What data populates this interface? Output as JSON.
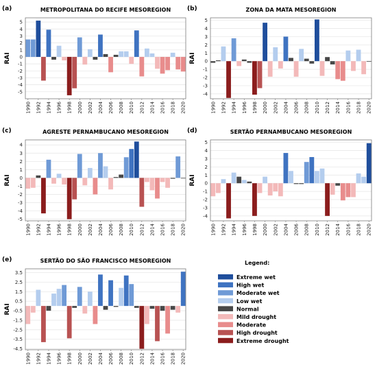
{
  "figure": {
    "legend_title": "Legend:"
  },
  "colors": {
    "Extreme wet": "#1f4e9c",
    "High wet": "#3f73c1",
    "Moderate wet": "#6f9ad6",
    "Low wet": "#b4cdee",
    "Normal": "#474747",
    "Mild drought": "#f3b9b9",
    "Moderate": "#e88c8c",
    "High drought": "#b85252",
    "Extreme drought": "#8b1d1d"
  },
  "legend": {
    "title": "Legend:",
    "items": [
      "Extreme wet",
      "High wet",
      "Moderate wet",
      "Low wet",
      "Normal",
      "Mild drought",
      "Moderate",
      "High drought",
      "Extreme drought"
    ]
  },
  "chart_data": [
    {
      "type": "bar",
      "panel": "(a)",
      "title": "METROPOLITANA DO RECIFE MESOREGION",
      "ylabel": "RAI",
      "ylim": [
        -6,
        5.6
      ],
      "yticks": [
        5,
        4,
        3,
        2,
        1,
        0,
        -1,
        -2,
        -3,
        -4,
        -5
      ],
      "xticks": [
        "1990",
        "1992",
        "1994",
        "1996",
        "1998",
        "2000",
        "2002",
        "2004",
        "2006",
        "2008",
        "2010",
        "2012",
        "2014",
        "2016",
        "2018",
        "2020"
      ],
      "years": [
        1990,
        1991,
        1992,
        1993,
        1994,
        1995,
        1996,
        1997,
        1998,
        1999,
        2000,
        2001,
        2002,
        2003,
        2004,
        2005,
        2006,
        2007,
        2008,
        2009,
        2010,
        2011,
        2012,
        2013,
        2014,
        2015,
        2016,
        2017,
        2018,
        2019,
        2020
      ],
      "values": [
        2.5,
        2.5,
        5.2,
        -3.4,
        3.9,
        -0.4,
        1.6,
        -0.5,
        -5.5,
        -4.5,
        2.8,
        -1.1,
        1.1,
        -0.4,
        3.2,
        0.4,
        -2.2,
        0.3,
        0.8,
        0.8,
        -1.0,
        3.8,
        -2.8,
        1.2,
        0.5,
        -1.7,
        -2.4,
        -1.9,
        0.6,
        -1.8,
        -2.1
      ],
      "classes": [
        "Moderate wet",
        "Moderate wet",
        "Extreme wet",
        "High drought",
        "High wet",
        "Normal",
        "Low wet",
        "Mild drought",
        "Extreme drought",
        "High drought",
        "Moderate wet",
        "Mild drought",
        "Low wet",
        "Normal",
        "High wet",
        "Normal",
        "Moderate",
        "Normal",
        "Low wet",
        "Low wet",
        "Mild drought",
        "High wet",
        "Moderate",
        "Low wet",
        "Low wet",
        "Mild drought",
        "Moderate",
        "Moderate",
        "Low wet",
        "Moderate",
        "Moderate"
      ]
    },
    {
      "type": "bar",
      "panel": "(b)",
      "title": "ZONA DA MATA MESOREGION",
      "ylabel": "RAI",
      "ylim": [
        -4.6,
        5.3
      ],
      "yticks": [
        5,
        4,
        3,
        2,
        1,
        0,
        -1,
        -2,
        -3,
        -4
      ],
      "xticks": [
        "1990",
        "1992",
        "1994",
        "1996",
        "1998",
        "2000",
        "2002",
        "2004",
        "2006",
        "2008",
        "2010",
        "2012",
        "2014",
        "2016",
        "2018",
        "2020"
      ],
      "years": [
        1990,
        1991,
        1992,
        1993,
        1994,
        1995,
        1996,
        1997,
        1998,
        1999,
        2000,
        2001,
        2002,
        2003,
        2004,
        2005,
        2006,
        2007,
        2008,
        2009,
        2010,
        2011,
        2012,
        2013,
        2014,
        2015,
        2016,
        2017,
        2018,
        2019,
        2020
      ],
      "values": [
        -0.2,
        0.1,
        1.8,
        -4.5,
        2.8,
        -0.6,
        0.2,
        -0.2,
        -4.1,
        -3.3,
        4.7,
        -1.9,
        1.7,
        -0.9,
        3.0,
        0.4,
        -1.9,
        1.5,
        0.3,
        -0.3,
        5.1,
        -1.8,
        0.5,
        -0.4,
        -2.2,
        -2.4,
        1.3,
        -1.2,
        1.4,
        -1.6,
        0.0
      ],
      "classes": [
        "Normal",
        "Normal",
        "Low wet",
        "Extreme drought",
        "Moderate wet",
        "Mild drought",
        "Normal",
        "Normal",
        "Extreme drought",
        "High drought",
        "Extreme wet",
        "Mild drought",
        "Low wet",
        "Mild drought",
        "High wet",
        "Normal",
        "Mild drought",
        "Low wet",
        "Normal",
        "Normal",
        "Extreme wet",
        "Mild drought",
        "Normal",
        "Normal",
        "Moderate",
        "Moderate",
        "Low wet",
        "Mild drought",
        "Low wet",
        "Mild drought",
        "Normal"
      ]
    },
    {
      "type": "bar",
      "panel": "(c)",
      "title": "AGRESTE PERNAMBUCANO MESOREGION",
      "ylabel": "RAI",
      "ylim": [
        -5.2,
        4.6
      ],
      "yticks": [
        4,
        3,
        2,
        1,
        0,
        -1,
        -2,
        -3,
        -4,
        -5
      ],
      "xticks": [
        "1990",
        "1992",
        "1994",
        "1996",
        "1998",
        "2000",
        "2002",
        "2004",
        "2006",
        "2008",
        "2010",
        "2012",
        "2014",
        "2016",
        "2018",
        "2020"
      ],
      "years": [
        1990,
        1991,
        1992,
        1993,
        1994,
        1995,
        1996,
        1997,
        1998,
        1999,
        2000,
        2001,
        2002,
        2003,
        2004,
        2005,
        2006,
        2007,
        2008,
        2009,
        2010,
        2011,
        2012,
        2013,
        2014,
        2015,
        2016,
        2017,
        2018,
        2019,
        2020
      ],
      "values": [
        -1.3,
        -1.2,
        0.3,
        -4.3,
        2.2,
        -0.7,
        0.5,
        -0.8,
        -5.0,
        -2.6,
        2.9,
        -0.9,
        1.2,
        -2.0,
        3.0,
        1.4,
        -1.4,
        0.1,
        0.4,
        2.5,
        3.5,
        4.4,
        -3.5,
        -0.5,
        -1.5,
        -2.5,
        -0.5,
        -1.2,
        -0.1,
        2.6,
        0.0
      ],
      "classes": [
        "Mild drought",
        "Mild drought",
        "Normal",
        "Extreme drought",
        "Moderate wet",
        "Mild drought",
        "Low wet",
        "Mild drought",
        "Extreme drought",
        "High drought",
        "Moderate wet",
        "Mild drought",
        "Low wet",
        "Moderate",
        "Moderate wet",
        "Low wet",
        "Mild drought",
        "Normal",
        "Normal",
        "Moderate wet",
        "High wet",
        "Extreme wet",
        "High drought",
        "Mild drought",
        "Mild drought",
        "Moderate",
        "Mild drought",
        "Mild drought",
        "Normal",
        "Moderate wet",
        "Normal"
      ]
    },
    {
      "type": "bar",
      "panel": "(d)",
      "title": "SERTÃO PERNAMBUCANO MESOREGION",
      "ylabel": "RAI",
      "ylim": [
        -4.6,
        5.3
      ],
      "yticks": [
        5,
        4,
        3,
        2,
        1,
        0,
        -1,
        -2,
        -3,
        -4
      ],
      "xticks": [
        "1990",
        "1992",
        "1994",
        "1996",
        "1998",
        "2000",
        "2002",
        "2004",
        "2006",
        "2008",
        "2010",
        "2012",
        "2014",
        "2016",
        "2018",
        "2020"
      ],
      "years": [
        1990,
        1991,
        1992,
        1993,
        1994,
        1995,
        1996,
        1997,
        1998,
        1999,
        2000,
        2001,
        2002,
        2003,
        2004,
        2005,
        2006,
        2007,
        2008,
        2009,
        2010,
        2011,
        2012,
        2013,
        2014,
        2015,
        2016,
        2017,
        2018,
        2019,
        2020
      ],
      "values": [
        -1.6,
        -1.2,
        0.5,
        -4.3,
        1.3,
        0.8,
        0.4,
        0.2,
        -4.0,
        -1.2,
        0.8,
        -1.5,
        -1.0,
        -1.6,
        3.7,
        1.5,
        -0.1,
        -0.1,
        2.6,
        3.2,
        1.5,
        1.8,
        -4.0,
        -1.4,
        -0.3,
        -2.1,
        -1.7,
        -1.7,
        1.2,
        0.8,
        4.9
      ],
      "classes": [
        "Mild drought",
        "Mild drought",
        "Low wet",
        "Extreme drought",
        "Low wet",
        "Normal",
        "Low wet",
        "Normal",
        "Extreme drought",
        "Mild drought",
        "Low wet",
        "Mild drought",
        "Mild drought",
        "Mild drought",
        "High wet",
        "Low wet",
        "Normal",
        "Normal",
        "Moderate wet",
        "High wet",
        "Low wet",
        "Low wet",
        "Extreme drought",
        "Mild drought",
        "Normal",
        "Moderate",
        "Moderate",
        "Mild drought",
        "Low wet",
        "Low wet",
        "Extreme wet"
      ]
    },
    {
      "type": "bar",
      "panel": "(e)",
      "title": "SERTÃO DO SÃO FRANCISCO MESOREGION",
      "ylabel": "RAI",
      "ylim": [
        -4.6,
        3.9
      ],
      "yticks": [
        3.5,
        2.5,
        1.5,
        0.5,
        -0.5,
        -1.5,
        -2.5,
        -3.5,
        -4.5
      ],
      "yticklabels": [
        "3.5",
        "2.5",
        "1.5",
        "0.5",
        "-0.5",
        "-1.5",
        "-2.5",
        "-3.5",
        "-4.5"
      ],
      "xticks": [
        "1990",
        "1992",
        "1994",
        "1996",
        "1998",
        "2000",
        "2002",
        "2004",
        "2006",
        "2008",
        "2010",
        "2012",
        "2014",
        "2016",
        "2018",
        "2020"
      ],
      "years": [
        1990,
        1991,
        1992,
        1993,
        1994,
        1995,
        1996,
        1997,
        1998,
        1999,
        2000,
        2001,
        2002,
        2003,
        2004,
        2005,
        2006,
        2007,
        2008,
        2009,
        2010,
        2011,
        2012,
        2013,
        2014,
        2015,
        2016,
        2017,
        2018,
        2019,
        2020
      ],
      "values": [
        -1.9,
        -0.7,
        1.7,
        -3.8,
        -0.5,
        1.3,
        1.8,
        2.2,
        -3.4,
        -0.2,
        2.0,
        -0.8,
        1.5,
        -1.9,
        3.3,
        -0.4,
        2.7,
        -0.1,
        1.9,
        3.2,
        2.3,
        -0.2,
        -4.5,
        -1.9,
        -0.3,
        -3.7,
        -0.5,
        -2.9,
        -0.4,
        -0.7,
        3.6
      ],
      "classes": [
        "Mild drought",
        "Mild drought",
        "Low wet",
        "High drought",
        "Normal",
        "Low wet",
        "Low wet",
        "Moderate wet",
        "High drought",
        "Normal",
        "Moderate wet",
        "Mild drought",
        "Low wet",
        "Moderate",
        "High wet",
        "Normal",
        "High wet",
        "Normal",
        "Low wet",
        "High wet",
        "Moderate wet",
        "Normal",
        "Extreme drought",
        "Mild drought",
        "Normal",
        "High drought",
        "Normal",
        "Moderate",
        "Normal",
        "Mild drought",
        "High wet"
      ]
    }
  ]
}
